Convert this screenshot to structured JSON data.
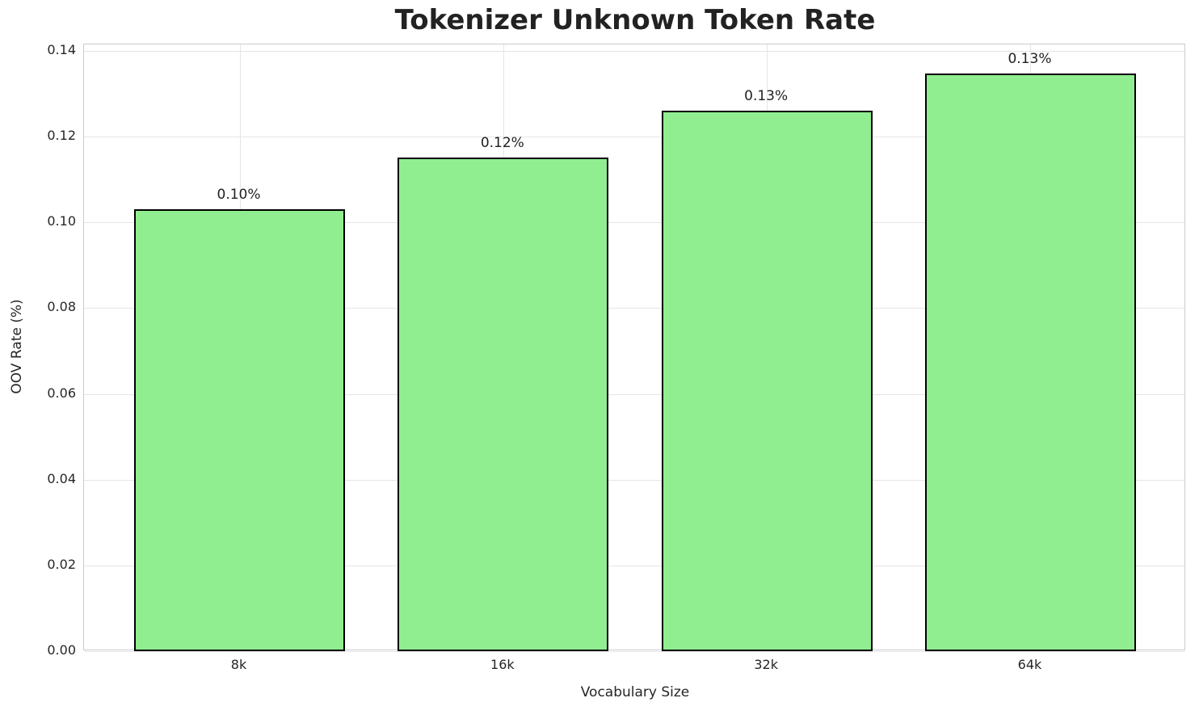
{
  "chart_data": {
    "type": "bar",
    "title": "Tokenizer Unknown Token Rate",
    "xlabel": "Vocabulary Size",
    "ylabel": "OOV Rate (%)",
    "categories": [
      "8k",
      "16k",
      "32k",
      "64k"
    ],
    "values": [
      0.103,
      0.1152,
      0.1261,
      0.1347
    ],
    "bar_labels": [
      "0.10%",
      "0.12%",
      "0.13%",
      "0.13%"
    ],
    "yticks": [
      "0.00",
      "0.02",
      "0.04",
      "0.06",
      "0.08",
      "0.10",
      "0.12",
      "0.14"
    ],
    "ylim": [
      0,
      0.1415
    ],
    "xlim": [
      -0.59,
      3.59
    ],
    "bar_width": 0.8,
    "grid": true,
    "legend": "none",
    "colors": {
      "bar_fill": "#90EE90",
      "bar_edge": "#000000",
      "grid": "#e5e5e5",
      "frame": "#cccccc",
      "text": "#262626",
      "background": "#ffffff"
    }
  }
}
